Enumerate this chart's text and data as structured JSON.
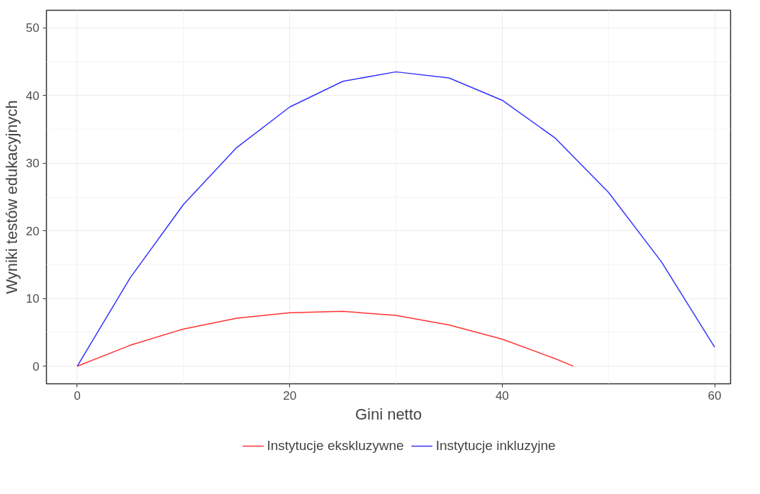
{
  "chart_data": {
    "type": "line",
    "xlabel": "Gini netto",
    "ylabel": "Wyniki testów edukacyjnych",
    "xlim": [
      -2.9,
      61.5
    ],
    "ylim": [
      -2.6,
      52.6
    ],
    "xticks": [
      0,
      20,
      40,
      60
    ],
    "yticks": [
      0,
      10,
      20,
      30,
      40,
      50
    ],
    "grid": true,
    "legend": "bottom",
    "line_style": "solid",
    "marker": "none",
    "series": [
      {
        "name": "Instytucje ekskluzywne",
        "color": "#ff3333",
        "x": [
          0,
          5,
          10,
          15,
          20,
          25,
          30,
          35,
          40,
          45,
          46.7
        ],
        "values": [
          0,
          3.1,
          5.5,
          7.1,
          7.9,
          8.1,
          7.5,
          6.1,
          4.0,
          1.1,
          0
        ]
      },
      {
        "name": "Instytucje inkluzyjne",
        "color": "#3333ff",
        "x": [
          0,
          5,
          10,
          15,
          20,
          25,
          30,
          35,
          40,
          45,
          50,
          55,
          60
        ],
        "values": [
          0,
          13.1,
          23.9,
          32.3,
          38.3,
          42.1,
          43.5,
          42.6,
          39.3,
          33.7,
          25.7,
          15.4,
          2.8
        ]
      }
    ]
  }
}
